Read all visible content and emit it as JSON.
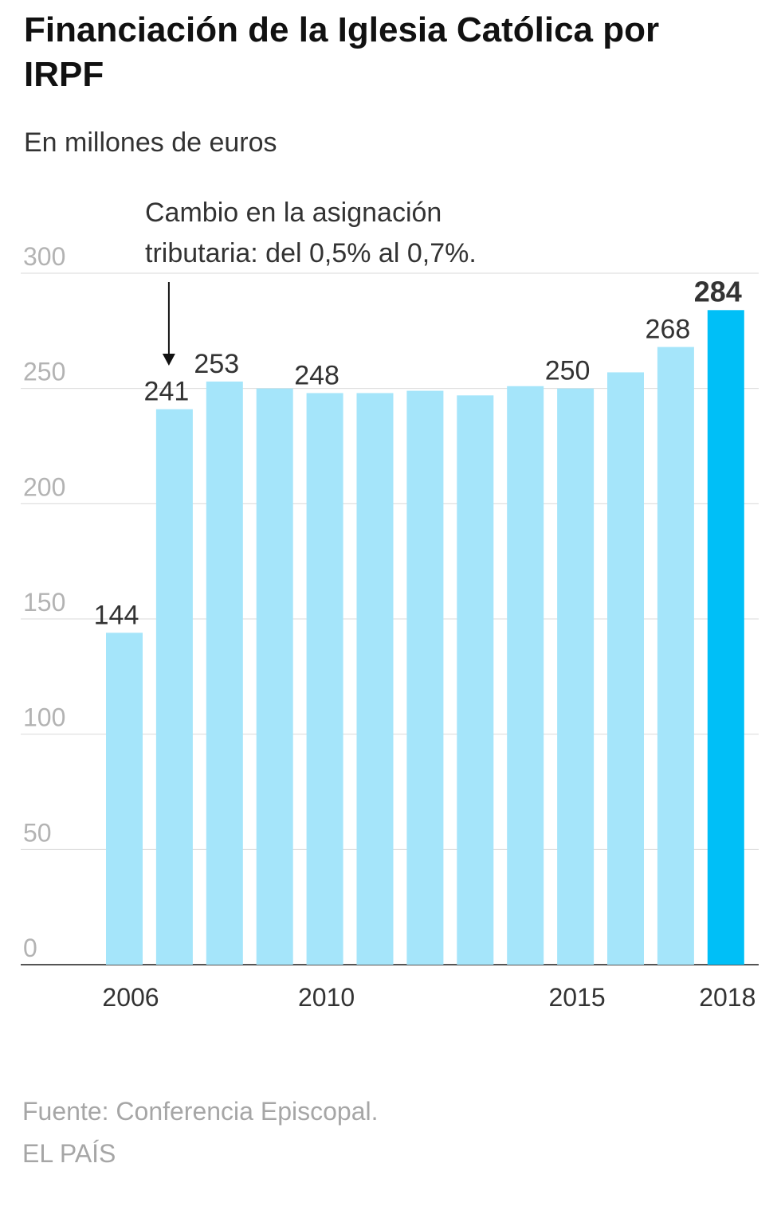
{
  "header": {
    "title": "Financiación de la Iglesia Católica por IRPF",
    "subtitle": "En millones de euros"
  },
  "annotation": {
    "text_line1": "Cambio en la asignación",
    "text_line2": "tributaria: del 0,5% al 0,7%."
  },
  "footer": {
    "source": "Fuente: Conferencia Episcopal.",
    "brand": "EL PAÍS"
  },
  "colors": {
    "bar": "#a5e5fa",
    "highlight": "#00bff7",
    "grid": "#d9d9d9",
    "axis": "#555555",
    "tick_text": "#b3b3b3",
    "label_text": "#333333"
  },
  "chart_data": {
    "type": "bar",
    "title": "Financiación de la Iglesia Católica por IRPF",
    "subtitle": "En millones de euros",
    "xlabel": "",
    "ylabel": "",
    "ylim": [
      0,
      300
    ],
    "yticks": [
      0,
      50,
      100,
      150,
      200,
      250,
      300
    ],
    "grid": true,
    "categories": [
      "2006",
      "2007",
      "2008",
      "2009",
      "2010",
      "2011",
      "2012",
      "2013",
      "2014",
      "2015",
      "2016",
      "2017",
      "2018"
    ],
    "x_tick_labels": [
      "2006",
      "2010",
      "2015",
      "2018"
    ],
    "values": [
      144,
      241,
      253,
      250,
      248,
      248,
      249,
      247,
      251,
      250,
      257,
      268,
      284
    ],
    "data_labels": {
      "2006": "144",
      "2007": "241",
      "2008": "253",
      "2010": "248",
      "2015": "250",
      "2017": "268",
      "2018": "284"
    },
    "highlight": "2018",
    "annotation": {
      "category": "2007",
      "text": "Cambio en la asignación tributaria: del 0,5% al 0,7%."
    }
  }
}
